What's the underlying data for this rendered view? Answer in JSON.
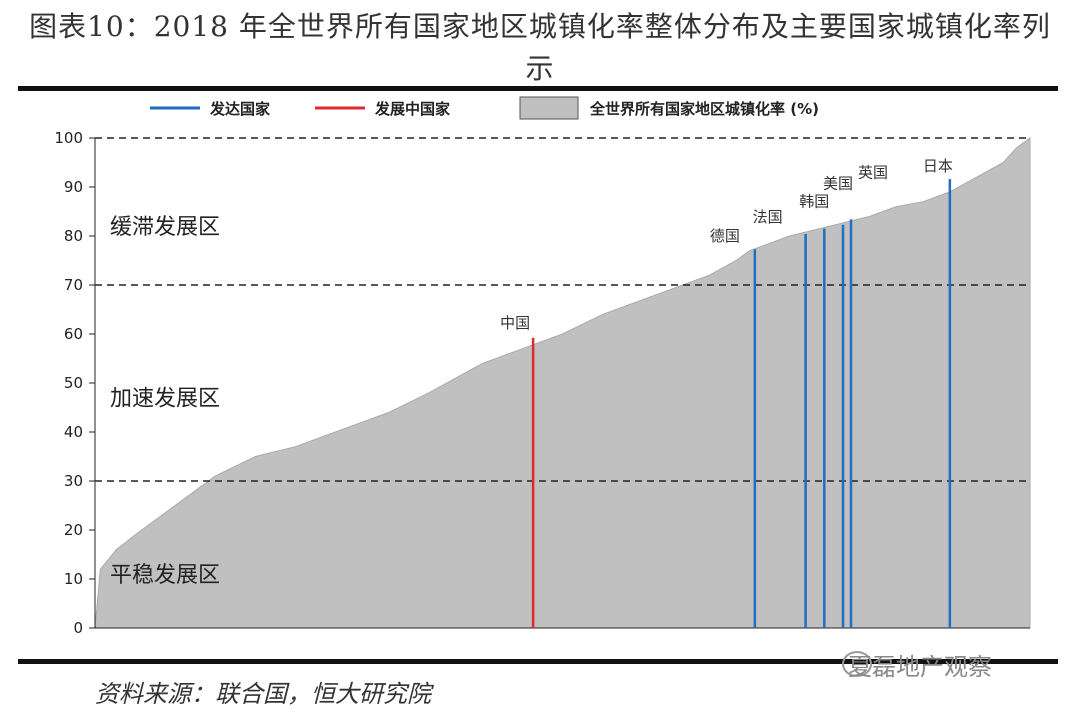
{
  "title": "图表10：2018 年全世界所有国家地区城镇化率整体分布及主要国家城镇化率列示",
  "source": "资料来源：联合国，恒大研究院",
  "watermark": "夏磊地产观察",
  "chart_data": {
    "type": "area",
    "ylim": [
      0,
      100
    ],
    "yticks": [
      0,
      10,
      20,
      30,
      40,
      50,
      60,
      70,
      80,
      90,
      100
    ],
    "grid": "dashed at 30, 70, 100",
    "legend": {
      "placement": "top",
      "entries": [
        {
          "label": "发达国家",
          "color": "#1f6fbf"
        },
        {
          "label": "发展中国家",
          "color": "#e0282e"
        },
        {
          "label": "全世界所有国家地区城镇化率 (%)",
          "color": "#c0c0c0"
        }
      ]
    },
    "zones": [
      {
        "label": "缓滞发展区",
        "y": 82
      },
      {
        "label": "加速发展区",
        "y": 47
      },
      {
        "label": "平稳发展区",
        "y": 11
      }
    ],
    "area_series": {
      "rank": [
        0,
        2,
        8,
        15,
        25,
        35,
        45,
        60,
        75,
        90,
        100,
        110,
        125,
        135,
        145,
        160,
        175,
        190,
        200,
        210,
        220,
        230,
        240,
        245,
        250,
        260,
        275,
        290,
        300,
        310,
        320,
        330,
        340,
        345,
        350
      ],
      "value": [
        0,
        12,
        16,
        19,
        23,
        27,
        31,
        35,
        37,
        40,
        42,
        44,
        48,
        51,
        54,
        57,
        60,
        64,
        66,
        68,
        70,
        72,
        75,
        77,
        78,
        80,
        82,
        84,
        86,
        87,
        89,
        92,
        95,
        98,
        100
      ]
    },
    "rank_max": 350,
    "markers": [
      {
        "country": "中国",
        "rank": 164,
        "value": 59.2,
        "group": "发展中国家"
      },
      {
        "country": "德国",
        "rank": 247,
        "value": 77.3,
        "group": "发达国家"
      },
      {
        "country": "法国",
        "rank": 266,
        "value": 80.4,
        "group": "发达国家"
      },
      {
        "country": "韩国",
        "rank": 273,
        "value": 81.5,
        "group": "发达国家"
      },
      {
        "country": "美国",
        "rank": 280,
        "value": 82.3,
        "group": "发达国家"
      },
      {
        "country": "英国",
        "rank": 283,
        "value": 83.4,
        "group": "发达国家"
      },
      {
        "country": "日本",
        "rank": 320,
        "value": 91.6,
        "group": "发达国家"
      }
    ]
  }
}
